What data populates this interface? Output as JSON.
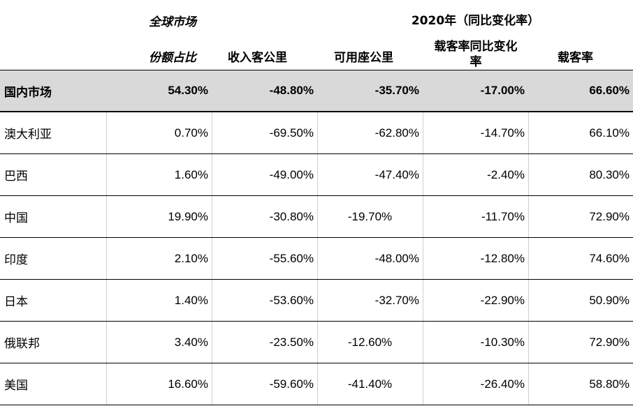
{
  "header": {
    "group_left_title": "全球市场",
    "group_right_title": "2020年（同比变化率）",
    "columns": [
      "份额占比",
      "收入客公里",
      "可用座公里",
      "载客率同比变化率",
      "载客率"
    ]
  },
  "rows": [
    {
      "name": "国内市场",
      "values": [
        "54.30%",
        "-48.80%",
        "-35.70%",
        "-17.00%",
        "66.60%"
      ]
    },
    {
      "name": "澳大利亚",
      "values": [
        "0.70%",
        "-69.50%",
        "-62.80%",
        "-14.70%",
        "66.10%"
      ]
    },
    {
      "name": "巴西",
      "values": [
        "1.60%",
        "-49.00%",
        "-47.40%",
        "-2.40%",
        "80.30%"
      ]
    },
    {
      "name": "中国",
      "values": [
        "19.90%",
        "-30.80%",
        "-19.70%",
        "-11.70%",
        "72.90%"
      ]
    },
    {
      "name": "印度",
      "values": [
        "2.10%",
        "-55.60%",
        "-48.00%",
        "-12.80%",
        "74.60%"
      ]
    },
    {
      "name": "日本",
      "values": [
        "1.40%",
        "-53.60%",
        "-32.70%",
        "-22.90%",
        "50.90%"
      ]
    },
    {
      "name": "俄联邦",
      "values": [
        "3.40%",
        "-23.50%",
        "-12.60%",
        "-10.30%",
        "72.90%"
      ]
    },
    {
      "name": "美国",
      "values": [
        "16.60%",
        "-59.60%",
        "-41.40%",
        "-26.40%",
        "58.80%"
      ]
    }
  ]
}
